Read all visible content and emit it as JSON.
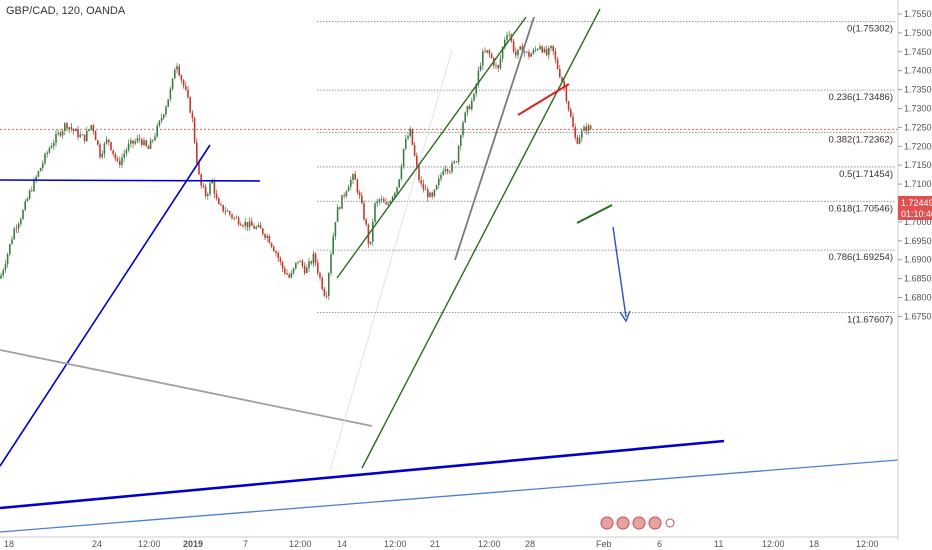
{
  "header": {
    "symbol_label": "GBP/CAD, 120, OANDA"
  },
  "price_badge": {
    "price": "1.72449",
    "countdown": "01:10:40"
  },
  "colors": {
    "up_candle": "#3a7d44",
    "down_candle": "#c0392b",
    "blue_line": "#0000cc",
    "light_blue_line": "#4a7fd6",
    "green_line": "#2e6b1e",
    "grey_line": "#a0a0a0",
    "red_line": "#e02020",
    "badge_bg": "#e05050",
    "arrow": "#2a52be"
  },
  "chart_data": {
    "type": "candlestick",
    "title": "GBP/CAD, 120, OANDA",
    "ylim": [
      1.673,
      1.757
    ],
    "y_ticks": [
      "1.75500",
      "1.75000",
      "1.74500",
      "1.74000",
      "1.73500",
      "1.73000",
      "1.72500",
      "1.72000",
      "1.71500",
      "1.71000",
      "1.70500",
      "1.70000",
      "1.69500",
      "1.69000",
      "1.68500",
      "1.68000",
      "1.67500"
    ],
    "x_ticks": [
      "18",
      "24",
      "12:00",
      "2019",
      "7",
      "12:00",
      "14",
      "12:00",
      "21",
      "12:00",
      "28",
      "Feb",
      "6",
      "11",
      "12:00",
      "18",
      "12:00"
    ],
    "fib_levels": [
      {
        "label": "0(1.75302)",
        "value": 1.75302
      },
      {
        "label": "0.236(1.73486)",
        "value": 1.73486
      },
      {
        "label": "0.382(1.72362)",
        "value": 1.72362
      },
      {
        "label": "0.5(1.71454)",
        "value": 1.71454
      },
      {
        "label": "0.618(1.70546)",
        "value": 1.70546
      },
      {
        "label": "0.786(1.69254)",
        "value": 1.69254
      },
      {
        "label": "1(1.67607)",
        "value": 1.67607
      }
    ],
    "current_price": 1.72449,
    "close_anchors": [
      [
        0,
        1.685
      ],
      [
        8,
        1.692
      ],
      [
        14,
        1.698
      ],
      [
        22,
        1.702
      ],
      [
        30,
        1.708
      ],
      [
        40,
        1.714
      ],
      [
        50,
        1.72
      ],
      [
        58,
        1.723
      ],
      [
        66,
        1.726
      ],
      [
        74,
        1.724
      ],
      [
        84,
        1.722
      ],
      [
        92,
        1.726
      ],
      [
        100,
        1.718
      ],
      [
        108,
        1.722
      ],
      [
        118,
        1.715
      ],
      [
        128,
        1.72
      ],
      [
        140,
        1.722
      ],
      [
        148,
        1.719
      ],
      [
        158,
        1.725
      ],
      [
        166,
        1.731
      ],
      [
        172,
        1.736
      ],
      [
        176,
        1.743
      ],
      [
        180,
        1.739
      ],
      [
        186,
        1.734
      ],
      [
        192,
        1.728
      ],
      [
        196,
        1.718
      ],
      [
        200,
        1.71
      ],
      [
        206,
        1.707
      ],
      [
        212,
        1.711
      ],
      [
        218,
        1.704
      ],
      [
        226,
        1.703
      ],
      [
        234,
        1.701
      ],
      [
        242,
        1.7
      ],
      [
        250,
        1.699
      ],
      [
        260,
        1.698
      ],
      [
        268,
        1.696
      ],
      [
        276,
        1.692
      ],
      [
        282,
        1.688
      ],
      [
        290,
        1.685
      ],
      [
        298,
        1.69
      ],
      [
        306,
        1.687
      ],
      [
        314,
        1.691
      ],
      [
        320,
        1.685
      ],
      [
        326,
        1.68
      ],
      [
        330,
        1.69
      ],
      [
        336,
        1.702
      ],
      [
        342,
        1.706
      ],
      [
        348,
        1.71
      ],
      [
        354,
        1.712
      ],
      [
        360,
        1.706
      ],
      [
        366,
        1.699
      ],
      [
        370,
        1.692
      ],
      [
        374,
        1.704
      ],
      [
        380,
        1.706
      ],
      [
        386,
        1.704
      ],
      [
        392,
        1.707
      ],
      [
        398,
        1.71
      ],
      [
        404,
        1.72
      ],
      [
        410,
        1.724
      ],
      [
        414,
        1.718
      ],
      [
        420,
        1.71
      ],
      [
        426,
        1.708
      ],
      [
        432,
        1.706
      ],
      [
        438,
        1.71
      ],
      [
        444,
        1.715
      ],
      [
        450,
        1.714
      ],
      [
        456,
        1.716
      ],
      [
        462,
        1.726
      ],
      [
        468,
        1.73
      ],
      [
        474,
        1.733
      ],
      [
        478,
        1.739
      ],
      [
        482,
        1.744
      ],
      [
        488,
        1.745
      ],
      [
        494,
        1.742
      ],
      [
        498,
        1.74
      ],
      [
        504,
        1.748
      ],
      [
        508,
        1.751
      ],
      [
        512,
        1.747
      ],
      [
        516,
        1.744
      ],
      [
        522,
        1.746
      ],
      [
        528,
        1.744
      ],
      [
        534,
        1.745
      ],
      [
        540,
        1.747
      ],
      [
        546,
        1.744
      ],
      [
        552,
        1.746
      ],
      [
        556,
        1.742
      ],
      [
        560,
        1.739
      ],
      [
        564,
        1.736
      ],
      [
        568,
        1.731
      ],
      [
        572,
        1.726
      ],
      [
        576,
        1.721
      ],
      [
        580,
        1.723
      ],
      [
        586,
        1.725
      ],
      [
        592,
        1.7245
      ]
    ]
  }
}
